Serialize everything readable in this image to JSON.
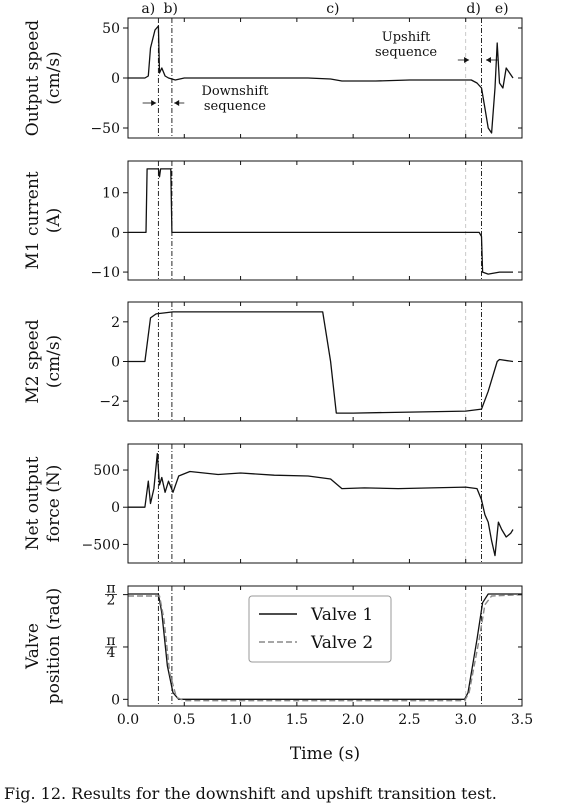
{
  "figure": {
    "caption": "Fig. 12.    Results for the downshift and upshift transition test."
  },
  "chart_data": {
    "type": "line",
    "xlabel": "Time (s)",
    "xlim": [
      0,
      3.5
    ],
    "xticks": [
      "0.0",
      "0.5",
      "1.0",
      "1.5",
      "2.0",
      "2.5",
      "3.0",
      "3.5"
    ],
    "xtick_values": [
      0,
      0.5,
      1.0,
      1.5,
      2.0,
      2.5,
      3.0,
      3.5
    ],
    "phase_labels": [
      {
        "text": "a)",
        "x": 0.18
      },
      {
        "text": "b)",
        "x": 0.38
      },
      {
        "text": "c)",
        "x": 1.82
      },
      {
        "text": "d)",
        "x": 3.07
      },
      {
        "text": "e)",
        "x": 3.32
      }
    ],
    "event_lines": [
      0.27,
      0.39,
      3.14
    ],
    "faint_line": 3.0,
    "panels": [
      {
        "ylabel_lines": [
          "Output speed",
          "(cm/s)"
        ],
        "ylim": [
          -60,
          60
        ],
        "yticks": [
          {
            "v": 50,
            "t": "50"
          },
          {
            "v": 0,
            "t": "0"
          },
          {
            "v": -50,
            "t": "−50"
          }
        ],
        "annotations": [
          {
            "lines": [
              "Downshift",
              "sequence"
            ],
            "x": 0.95,
            "y": -17
          },
          {
            "lines": [
              "Upshift",
              "sequence"
            ],
            "x": 2.47,
            "y": 37
          }
        ],
        "series": [
          {
            "name": "output_speed",
            "style": "solid",
            "points": [
              [
                0,
                0
              ],
              [
                0.15,
                0
              ],
              [
                0.18,
                2
              ],
              [
                0.2,
                30
              ],
              [
                0.24,
                48
              ],
              [
                0.27,
                52
              ],
              [
                0.28,
                5
              ],
              [
                0.3,
                10
              ],
              [
                0.33,
                2
              ],
              [
                0.36,
                0
              ],
              [
                0.39,
                -1
              ],
              [
                0.42,
                -2
              ],
              [
                0.5,
                0
              ],
              [
                0.7,
                0
              ],
              [
                1.0,
                0
              ],
              [
                1.3,
                0
              ],
              [
                1.6,
                0
              ],
              [
                1.8,
                -1
              ],
              [
                1.9,
                -3
              ],
              [
                2.2,
                -3
              ],
              [
                2.5,
                -2
              ],
              [
                2.8,
                -2
              ],
              [
                3.05,
                -2
              ],
              [
                3.1,
                -5
              ],
              [
                3.14,
                -10
              ],
              [
                3.17,
                -30
              ],
              [
                3.2,
                -50
              ],
              [
                3.23,
                -55
              ],
              [
                3.26,
                -10
              ],
              [
                3.28,
                35
              ],
              [
                3.3,
                -5
              ],
              [
                3.33,
                -10
              ],
              [
                3.36,
                10
              ],
              [
                3.39,
                5
              ],
              [
                3.42,
                0
              ]
            ]
          }
        ]
      },
      {
        "ylabel_lines": [
          "M1 current",
          "(A)"
        ],
        "ylim": [
          -12,
          18
        ],
        "yticks": [
          {
            "v": 10,
            "t": "10"
          },
          {
            "v": 0,
            "t": "0"
          },
          {
            "v": -10,
            "t": "−10"
          }
        ],
        "series": [
          {
            "name": "m1_current",
            "style": "solid",
            "points": [
              [
                0,
                0
              ],
              [
                0.16,
                0
              ],
              [
                0.17,
                16
              ],
              [
                0.27,
                16
              ],
              [
                0.28,
                14
              ],
              [
                0.29,
                16
              ],
              [
                0.38,
                16
              ],
              [
                0.39,
                0
              ],
              [
                0.5,
                0
              ],
              [
                1.0,
                0
              ],
              [
                1.5,
                0
              ],
              [
                2.0,
                0
              ],
              [
                2.5,
                0
              ],
              [
                3.12,
                0
              ],
              [
                3.14,
                -1
              ],
              [
                3.15,
                -10
              ],
              [
                3.2,
                -10.5
              ],
              [
                3.3,
                -10
              ],
              [
                3.42,
                -10
              ]
            ]
          }
        ]
      },
      {
        "ylabel_lines": [
          "M2 speed",
          "(cm/s)"
        ],
        "ylim": [
          -3,
          3
        ],
        "yticks": [
          {
            "v": 2,
            "t": "2"
          },
          {
            "v": 0,
            "t": "0"
          },
          {
            "v": -2,
            "t": "−2"
          }
        ],
        "series": [
          {
            "name": "m2_speed",
            "style": "solid",
            "points": [
              [
                0,
                0
              ],
              [
                0.15,
                0
              ],
              [
                0.2,
                2.2
              ],
              [
                0.25,
                2.4
              ],
              [
                0.4,
                2.5
              ],
              [
                1.0,
                2.5
              ],
              [
                1.5,
                2.5
              ],
              [
                1.73,
                2.5
              ],
              [
                1.8,
                0
              ],
              [
                1.85,
                -2.6
              ],
              [
                2.0,
                -2.6
              ],
              [
                2.5,
                -2.55
              ],
              [
                3.0,
                -2.5
              ],
              [
                3.14,
                -2.4
              ],
              [
                3.2,
                -1.5
              ],
              [
                3.28,
                0
              ],
              [
                3.3,
                0.1
              ],
              [
                3.42,
                0
              ]
            ]
          }
        ]
      },
      {
        "ylabel_lines": [
          "Net output",
          "force (N)"
        ],
        "ylim": [
          -750,
          850
        ],
        "yticks": [
          {
            "v": 500,
            "t": "500"
          },
          {
            "v": 0,
            "t": "0"
          },
          {
            "v": -500,
            "t": "−500"
          }
        ],
        "series": [
          {
            "name": "net_output_force",
            "style": "solid",
            "points": [
              [
                0,
                0
              ],
              [
                0.15,
                0
              ],
              [
                0.18,
                350
              ],
              [
                0.2,
                50
              ],
              [
                0.23,
                250
              ],
              [
                0.26,
                720
              ],
              [
                0.28,
                300
              ],
              [
                0.3,
                400
              ],
              [
                0.33,
                200
              ],
              [
                0.36,
                350
              ],
              [
                0.4,
                200
              ],
              [
                0.45,
                420
              ],
              [
                0.55,
                480
              ],
              [
                0.8,
                440
              ],
              [
                1.0,
                460
              ],
              [
                1.3,
                430
              ],
              [
                1.6,
                420
              ],
              [
                1.8,
                380
              ],
              [
                1.9,
                250
              ],
              [
                2.1,
                260
              ],
              [
                2.4,
                250
              ],
              [
                2.7,
                260
              ],
              [
                3.0,
                270
              ],
              [
                3.1,
                250
              ],
              [
                3.14,
                100
              ],
              [
                3.17,
                -100
              ],
              [
                3.2,
                -200
              ],
              [
                3.23,
                -450
              ],
              [
                3.26,
                -650
              ],
              [
                3.29,
                -200
              ],
              [
                3.32,
                -300
              ],
              [
                3.36,
                -400
              ],
              [
                3.4,
                -350
              ],
              [
                3.42,
                -300
              ]
            ]
          }
        ]
      },
      {
        "ylabel_lines": [
          "Valve",
          "position (rad)"
        ],
        "ylim": [
          -0.1,
          1.7
        ],
        "yticks": [
          {
            "v": 1.5708,
            "t": "π/2"
          },
          {
            "v": 0.7854,
            "t": "π/4"
          },
          {
            "v": 0,
            "t": "0"
          }
        ],
        "legend": {
          "placement": "upper-center",
          "entries": [
            {
              "label": "Valve 1",
              "style": "solid"
            },
            {
              "label": "Valve 2",
              "style": "dashed"
            }
          ]
        },
        "series": [
          {
            "name": "Valve 1",
            "style": "solid",
            "points": [
              [
                0,
                1.58
              ],
              [
                0.27,
                1.58
              ],
              [
                0.3,
                1.3
              ],
              [
                0.35,
                0.5
              ],
              [
                0.4,
                0.1
              ],
              [
                0.45,
                0
              ],
              [
                1.0,
                0
              ],
              [
                2.0,
                0
              ],
              [
                2.99,
                0
              ],
              [
                3.02,
                0.1
              ],
              [
                3.1,
                0.9
              ],
              [
                3.15,
                1.45
              ],
              [
                3.2,
                1.58
              ],
              [
                3.5,
                1.58
              ]
            ]
          },
          {
            "name": "Valve 2",
            "style": "dashed",
            "points": [
              [
                0,
                1.55
              ],
              [
                0.28,
                1.55
              ],
              [
                0.32,
                1.2
              ],
              [
                0.37,
                0.4
              ],
              [
                0.43,
                0.03
              ],
              [
                0.5,
                -0.02
              ],
              [
                1.0,
                -0.02
              ],
              [
                2.0,
                -0.02
              ],
              [
                2.99,
                -0.02
              ],
              [
                3.03,
                0.1
              ],
              [
                3.12,
                0.9
              ],
              [
                3.17,
                1.42
              ],
              [
                3.23,
                1.55
              ],
              [
                3.5,
                1.57
              ]
            ]
          }
        ]
      }
    ]
  }
}
